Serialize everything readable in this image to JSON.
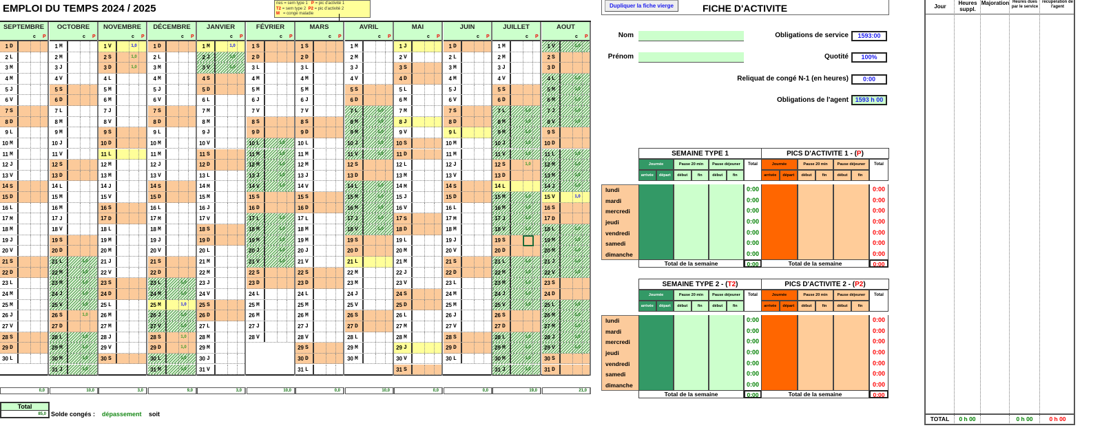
{
  "title": "EMPLOI DU TEMPS 2024 / 2025",
  "legend": {
    "line1_left": "ries = sem type 1",
    "line1_code": "P",
    "line1_right": "= pic d'activité 1",
    "line2_code_left": "T2",
    "line2_left": "= sem type 2",
    "line2_code": "P2",
    "line2_right": "= pic d'activité 2",
    "line3_code": "M",
    "line3_text": "= congé maladie"
  },
  "calendar": {
    "c_label": "c",
    "p_label": "P",
    "c_value": "1,0",
    "months": [
      {
        "name": "SEPTEMBRE",
        "weekdays": "DLMMJVSDLMMJVSDLMMJVSDLMMJVSDL",
        "holidays": [],
        "conges": [],
        "extra_c": [],
        "total": "0,0"
      },
      {
        "name": "OCTOBRE",
        "weekdays": "MMJVSDLMMJVSDLMMJVSDLMMJVSDLMMJ",
        "holidays": [],
        "conges": [
          21,
          22,
          23,
          24,
          25,
          28,
          29,
          30,
          31
        ],
        "extra_c": [
          26
        ],
        "total": "10,0"
      },
      {
        "name": "NOVEMBRE",
        "weekdays": "VSDLMMJVSDLMMJVSDLMMJVSDLMMJVS",
        "holidays": [
          1,
          11
        ],
        "conges": [],
        "extra_c": [
          1,
          2,
          3
        ],
        "total": "3,0"
      },
      {
        "name": "DÉCEMBRE",
        "weekdays": "DLMMJVSDLMMJVSDLMMJVSDLMMJVSDLM",
        "holidays": [
          25
        ],
        "conges": [
          23,
          24,
          26,
          27,
          30,
          31
        ],
        "extra_c": [
          25,
          28,
          29
        ],
        "total": "9,0"
      },
      {
        "name": "JANVIER",
        "weekdays": "MJVSDLMMJVSDLMMJVSDLMMJVSDLMMJV",
        "holidays": [
          1
        ],
        "conges": [
          2,
          3
        ],
        "extra_c": [
          1
        ],
        "total": "3,0"
      },
      {
        "name": "FÉVRIER",
        "weekdays": "SDLMMJVSDLMMJVSDLMMJVSDLMMJV",
        "holidays": [],
        "conges": [
          10,
          11,
          12,
          13,
          14,
          17,
          18,
          19,
          20,
          21
        ],
        "extra_c": [],
        "total": "10,0"
      },
      {
        "name": "MARS",
        "weekdays": "SDLMMJVSDLMMJVSDLMMJVSDLMMJVSDL",
        "holidays": [],
        "conges": [],
        "extra_c": [],
        "total": "0,0"
      },
      {
        "name": "AVRIL",
        "weekdays": "MMJVSDLMMJVSDLMMJVSDLMMJVSDLMM",
        "holidays": [
          21
        ],
        "conges": [
          7,
          8,
          9,
          10,
          11,
          14,
          15,
          16,
          17,
          18
        ],
        "extra_c": [],
        "total": "10,0"
      },
      {
        "name": "MAI",
        "weekdays": "JVSDLMMJVSDLMMJVSDLMMJVSDLMMJVS",
        "holidays": [
          1,
          8,
          29
        ],
        "conges": [],
        "extra_c": [],
        "total": "0,0"
      },
      {
        "name": "JUIN",
        "weekdays": "DLMMJVSDLMMJVSDLMMJVSDLMMJVSDL",
        "holidays": [
          9
        ],
        "conges": [],
        "extra_c": [],
        "total": "0,0"
      },
      {
        "name": "JUILLET",
        "weekdays": "MMJVSDLMMJVSDLMMJVSDLMMJVSDLMMJ",
        "holidays": [
          14
        ],
        "conges": [
          7,
          8,
          9,
          10,
          11,
          15,
          16,
          17,
          18,
          21,
          22,
          23,
          24,
          25,
          28,
          29,
          30,
          31
        ],
        "extra_c": [
          12
        ],
        "total": "19,0"
      },
      {
        "name": "AOUT",
        "weekdays": "VSDLMMJVSDLMMJVSDLMMJVSDLMMJVSD",
        "holidays": [
          15
        ],
        "conges": [
          1,
          4,
          5,
          6,
          7,
          8,
          11,
          12,
          13,
          14,
          18,
          19,
          20,
          21,
          22,
          25,
          26,
          27,
          28,
          29
        ],
        "extra_c": [
          15
        ],
        "total": "21,0"
      }
    ]
  },
  "summary": {
    "total_label": "Total",
    "total_value": "85,0",
    "solde_label": "Solde congés :",
    "depassement": "dépassement",
    "soit": "soit"
  },
  "fiche": {
    "duplicate_button": "Dupliquer la fiche vierge",
    "title": "FICHE D'ACTIVITE",
    "nom_label": "Nom",
    "nom_value": "",
    "prenom_label": "Prénom",
    "prenom_value": "",
    "obligations_service_label": "Obligations de service",
    "obligations_service_value": "1593:00",
    "quotite_label": "Quotité",
    "quotite_value": "100%",
    "reliquat_label": "Reliquat de congé N-1 (en heures)",
    "reliquat_value": "0:00",
    "obligations_agent_label": "Obligations de l'agent",
    "obligations_agent_value": "1593 h 00"
  },
  "weeks": {
    "headers": {
      "journee": "Journée",
      "arrivee": "arrivée",
      "depart": "départ",
      "pause20": "Pause 20 min",
      "pause_dej": "Pause déjeuner",
      "total": "Total",
      "debut": "début",
      "fin": "fin"
    },
    "days": [
      "lundi",
      "mardi",
      "mercredi",
      "jeudi",
      "vendredi",
      "samedi",
      "dimanche"
    ],
    "total_semaine_label": "Total de la semaine",
    "tables": [
      {
        "left_title": "SEMAINE TYPE 1",
        "left_code": "",
        "right_title": "PICS D'ACTIVITE 1 - (",
        "right_code": "P",
        "left_totals": [
          "0:00",
          "0:00",
          "0:00",
          "0:00",
          "0:00",
          "0:00",
          "0:00"
        ],
        "left_week_total": "0:00",
        "right_totals": [
          "0:00",
          "0:00",
          "0:00",
          "0:00",
          "0:00",
          "0:00",
          "0:00"
        ],
        "right_week_total": "0:00"
      },
      {
        "left_title": "SEMAINE TYPE 2 - (",
        "left_code": "T2",
        "right_title": "PICS D'ACTIVITE 2 - (",
        "right_code": "P2",
        "left_totals": [
          "0:00",
          "0:00",
          "0:00",
          "0:00",
          "0:00",
          "0:00",
          "0:00"
        ],
        "left_week_total": "0:00",
        "right_totals": [
          "0:00",
          "0:00",
          "0:00",
          "0:00",
          "0:00",
          "0:00",
          "0:00"
        ],
        "right_week_total": "0:00"
      }
    ]
  },
  "hours_table": {
    "headers": [
      "Jour",
      "Heures suppl.",
      "Majoration",
      "Heures dues par le service",
      "récupération de l'agent"
    ],
    "total_label": "TOTAL",
    "totals": [
      "0 h 00",
      "",
      "0 h 00",
      "0 h 00"
    ]
  },
  "colors": {
    "weekend": "#fcca9a",
    "holiday": "#ffff99",
    "header_green": "#ccffcc",
    "journee_dark": "#339966",
    "pic_orange": "#ff6600",
    "pic_light": "#ffcc99",
    "total_green": "#008000",
    "total_red": "#ff0000"
  }
}
